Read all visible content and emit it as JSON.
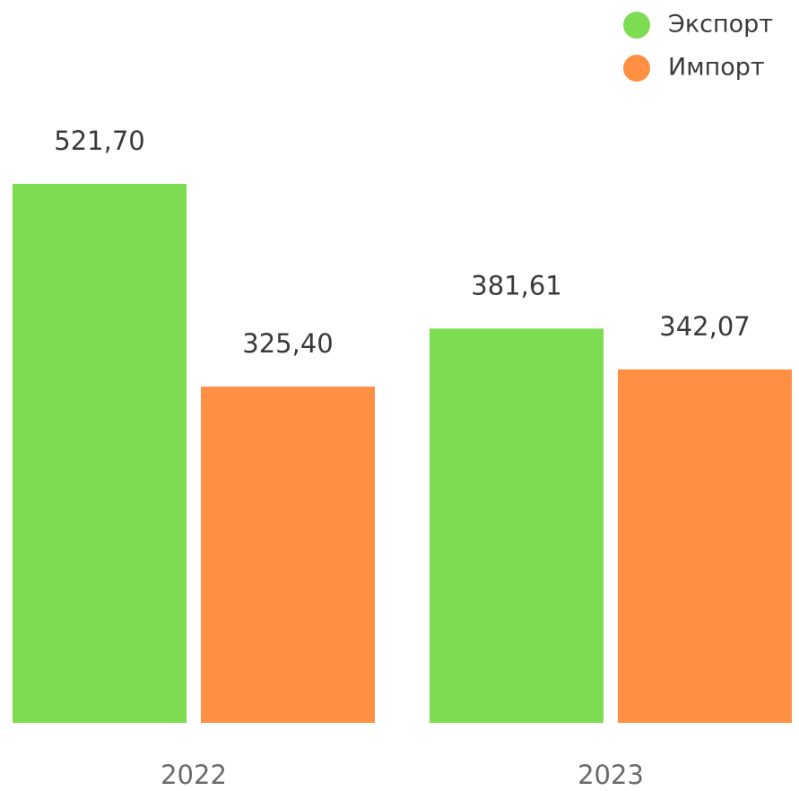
{
  "chart_data": {
    "type": "bar",
    "categories": [
      "2022",
      "2023"
    ],
    "series": [
      {
        "name": "Экспорт",
        "color": "#7ddd52",
        "values": [
          521.7,
          381.61
        ],
        "value_labels": [
          "521,70",
          "381,61"
        ]
      },
      {
        "name": "Импорт",
        "color": "#ff8f42",
        "values": [
          325.4,
          342.07
        ],
        "value_labels": [
          "325,40",
          "342,07"
        ]
      }
    ],
    "legend": "top-right"
  }
}
